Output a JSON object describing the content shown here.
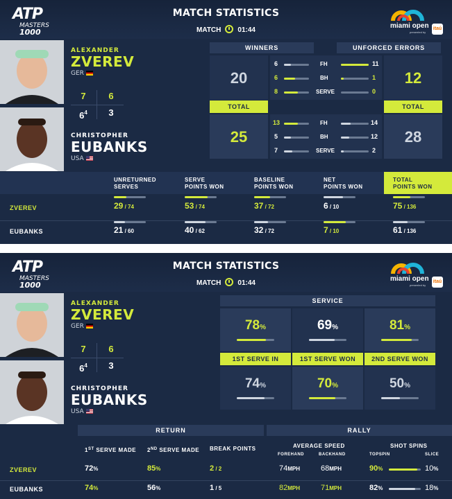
{
  "header": {
    "brand": "ATP",
    "brand_sub": "MASTERS",
    "brand_num": "1000",
    "title": "MATCH STATISTICS",
    "match_label": "MATCH",
    "match_time": "01:44",
    "sponsor": "miami open",
    "sponsor_sub": "presented by",
    "sponsor_badge": "itaú"
  },
  "players": {
    "p1": {
      "first": "ALEXANDER",
      "last": "ZVEREV",
      "country": "GER",
      "sets": [
        "7",
        "6"
      ]
    },
    "p2": {
      "first": "CHRISTOPHER",
      "last": "EUBANKS",
      "country": "USA",
      "sets": [
        "6",
        "3"
      ],
      "tiebreak": "4"
    }
  },
  "panel1": {
    "winners_label": "WINNERS",
    "ue_label": "UNFORCED ERRORS",
    "total_label": "TOTAL",
    "shot_labels": [
      "FH",
      "BH",
      "SERVE"
    ],
    "p1_winners_total": "20",
    "p2_winners_total": "25",
    "p1_ue_total": "12",
    "p2_ue_total": "28",
    "p1_winners": [
      "6",
      "6",
      "8"
    ],
    "p2_winners": [
      "13",
      "5",
      "7"
    ],
    "p1_ue": [
      "11",
      "1",
      "0"
    ],
    "p2_ue": [
      "14",
      "12",
      "2"
    ],
    "columns": [
      {
        "l1": "UNRETURNED",
        "l2": "SERVES"
      },
      {
        "l1": "SERVE",
        "l2": "POINTS WON"
      },
      {
        "l1": "BASELINE",
        "l2": "POINTS WON"
      },
      {
        "l1": "NET",
        "l2": "POINTS WON"
      },
      {
        "l1": "TOTAL",
        "l2": "POINTS WON"
      }
    ],
    "row_labels": [
      "ZVEREV",
      "EUBANKS"
    ],
    "zverev": [
      {
        "a": "29",
        "b": "74",
        "frac": 0.39
      },
      {
        "a": "53",
        "b": "74",
        "frac": 0.72
      },
      {
        "a": "37",
        "b": "72",
        "frac": 0.51
      },
      {
        "a": "6",
        "b": "10",
        "frac": 0.6
      },
      {
        "a": "75",
        "b": "136",
        "frac": 0.55
      }
    ],
    "eubanks": [
      {
        "a": "21",
        "b": "60",
        "frac": 0.35
      },
      {
        "a": "40",
        "b": "62",
        "frac": 0.65
      },
      {
        "a": "32",
        "b": "72",
        "frac": 0.44
      },
      {
        "a": "7",
        "b": "10",
        "frac": 0.7
      },
      {
        "a": "61",
        "b": "136",
        "frac": 0.45
      }
    ]
  },
  "panel2": {
    "service_label": "SERVICE",
    "service_cols": [
      "1ST SERVE IN",
      "1ST SERVE WON",
      "2ND SERVE WON"
    ],
    "p1_service": [
      {
        "v": "78",
        "frac": 0.78
      },
      {
        "v": "69",
        "frac": 0.69
      },
      {
        "v": "81",
        "frac": 0.81
      }
    ],
    "p2_service": [
      {
        "v": "74",
        "frac": 0.74
      },
      {
        "v": "70",
        "frac": 0.7
      },
      {
        "v": "50",
        "frac": 0.5
      }
    ],
    "pct": "%",
    "return_label": "RETURN",
    "rally_label": "RALLY",
    "return_cols": [
      "1ST SERVE MADE",
      "2ND SERVE MADE",
      "BREAK POINTS"
    ],
    "avg_speed": "AVERAGE SPEED",
    "shot_spins": "SHOT SPINS",
    "forehand": "FOREHAND",
    "backhand": "BACKHAND",
    "topspin": "TOPSPIN",
    "slice": "SLICE",
    "mph": "MPH",
    "row_labels": [
      "ZVEREV",
      "EUBANKS"
    ],
    "zverev": {
      "r1": "72",
      "r2": "85",
      "bp": "2",
      "bpt": "2",
      "fh": "74",
      "bh": "68",
      "top": "90",
      "sl": "10",
      "topfrac": 0.9
    },
    "eubanks": {
      "r1": "74",
      "r2": "56",
      "bp": "1",
      "bpt": "5",
      "fh": "82",
      "bh": "71",
      "top": "82",
      "sl": "18",
      "topfrac": 0.82
    }
  },
  "colors": {
    "accent": "#d4ea3b",
    "bg": "#1b2a44"
  }
}
